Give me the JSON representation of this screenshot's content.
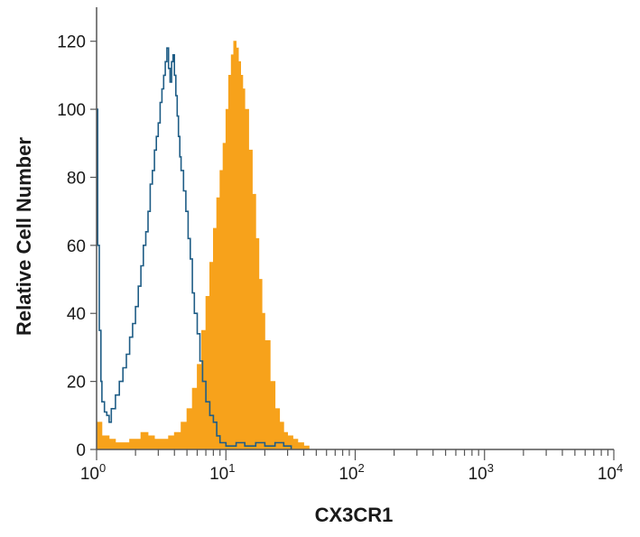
{
  "chart_data": {
    "type": "area",
    "xlabel": "CX3CR1",
    "ylabel": "Relative Cell Number",
    "x_scale": "log",
    "xlim": [
      1,
      10000
    ],
    "ylim": [
      0,
      130
    ],
    "x_ticks": [
      {
        "value": 1,
        "base": "10",
        "exp": "0"
      },
      {
        "value": 10,
        "base": "10",
        "exp": "1"
      },
      {
        "value": 100,
        "base": "10",
        "exp": "2"
      },
      {
        "value": 1000,
        "base": "10",
        "exp": "3"
      },
      {
        "value": 10000,
        "base": "10",
        "exp": "4"
      }
    ],
    "y_ticks": [
      {
        "value": 0,
        "label": "0"
      },
      {
        "value": 20,
        "label": "20"
      },
      {
        "value": 40,
        "label": "40"
      },
      {
        "value": 60,
        "label": "60"
      },
      {
        "value": 80,
        "label": "80"
      },
      {
        "value": 100,
        "label": "100"
      },
      {
        "value": 120,
        "label": "120"
      }
    ],
    "grid": false,
    "legend": "none",
    "series": [
      {
        "style": "filled",
        "color": "#f7a21b",
        "points": [
          [
            1.0,
            8
          ],
          [
            1.1,
            4
          ],
          [
            1.25,
            3
          ],
          [
            1.4,
            2
          ],
          [
            1.6,
            2
          ],
          [
            1.8,
            3
          ],
          [
            2.0,
            3
          ],
          [
            2.2,
            5
          ],
          [
            2.5,
            4
          ],
          [
            2.8,
            3
          ],
          [
            3.2,
            3
          ],
          [
            3.6,
            4
          ],
          [
            4.0,
            5
          ],
          [
            4.5,
            8
          ],
          [
            5.0,
            12
          ],
          [
            5.5,
            18
          ],
          [
            6.0,
            25
          ],
          [
            6.5,
            35
          ],
          [
            7.0,
            45
          ],
          [
            7.5,
            55
          ],
          [
            8.0,
            65
          ],
          [
            8.5,
            74
          ],
          [
            9.0,
            82
          ],
          [
            9.5,
            90
          ],
          [
            10.0,
            100
          ],
          [
            10.5,
            110
          ],
          [
            11.0,
            116
          ],
          [
            11.5,
            120
          ],
          [
            12.0,
            118
          ],
          [
            12.5,
            114
          ],
          [
            13.0,
            110
          ],
          [
            13.5,
            106
          ],
          [
            14.0,
            100
          ],
          [
            15.0,
            88
          ],
          [
            16.0,
            75
          ],
          [
            17.0,
            62
          ],
          [
            18.0,
            50
          ],
          [
            19.0,
            40
          ],
          [
            20.0,
            32
          ],
          [
            22.0,
            20
          ],
          [
            24.0,
            12
          ],
          [
            26.0,
            8
          ],
          [
            28.0,
            5
          ],
          [
            30.0,
            4
          ],
          [
            33.0,
            3
          ],
          [
            36.0,
            2
          ],
          [
            40.0,
            1
          ],
          [
            44.0,
            0
          ]
        ]
      },
      {
        "style": "outline",
        "color": "#1f5d86",
        "points": [
          [
            1.0,
            100
          ],
          [
            1.02,
            60
          ],
          [
            1.05,
            35
          ],
          [
            1.08,
            20
          ],
          [
            1.1,
            14
          ],
          [
            1.15,
            11
          ],
          [
            1.2,
            10
          ],
          [
            1.25,
            8
          ],
          [
            1.3,
            12
          ],
          [
            1.4,
            16
          ],
          [
            1.5,
            20
          ],
          [
            1.6,
            24
          ],
          [
            1.7,
            28
          ],
          [
            1.8,
            33
          ],
          [
            1.9,
            37
          ],
          [
            2.0,
            42
          ],
          [
            2.1,
            48
          ],
          [
            2.2,
            54
          ],
          [
            2.3,
            60
          ],
          [
            2.4,
            64
          ],
          [
            2.5,
            70
          ],
          [
            2.6,
            78
          ],
          [
            2.7,
            82
          ],
          [
            2.8,
            88
          ],
          [
            2.9,
            92
          ],
          [
            3.0,
            96
          ],
          [
            3.1,
            102
          ],
          [
            3.2,
            106
          ],
          [
            3.3,
            110
          ],
          [
            3.4,
            114
          ],
          [
            3.5,
            118
          ],
          [
            3.6,
            112
          ],
          [
            3.7,
            108
          ],
          [
            3.8,
            114
          ],
          [
            3.9,
            116
          ],
          [
            4.0,
            110
          ],
          [
            4.1,
            104
          ],
          [
            4.2,
            98
          ],
          [
            4.3,
            92
          ],
          [
            4.4,
            86
          ],
          [
            4.5,
            82
          ],
          [
            4.7,
            76
          ],
          [
            4.9,
            70
          ],
          [
            5.1,
            62
          ],
          [
            5.3,
            56
          ],
          [
            5.5,
            46
          ],
          [
            5.7,
            40
          ],
          [
            6.0,
            34
          ],
          [
            6.3,
            26
          ],
          [
            6.6,
            20
          ],
          [
            7.0,
            14
          ],
          [
            7.5,
            10
          ],
          [
            8.0,
            8
          ],
          [
            8.5,
            4
          ],
          [
            9.0,
            2
          ],
          [
            10.0,
            1
          ],
          [
            12.0,
            2
          ],
          [
            14.0,
            1
          ],
          [
            17.0,
            2
          ],
          [
            20.0,
            1
          ],
          [
            24.0,
            2
          ],
          [
            28.0,
            1
          ],
          [
            32.0,
            0
          ]
        ]
      }
    ]
  }
}
